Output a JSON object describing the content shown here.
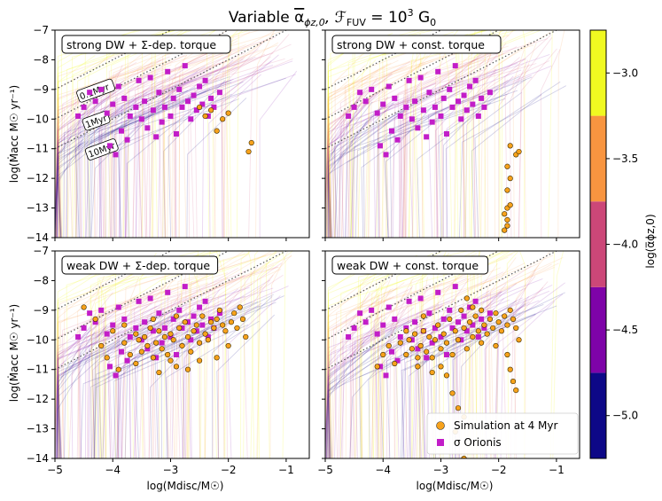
{
  "figure": {
    "title": "Variable α̅ϕz,0, ℱFUV = 10³ G₀",
    "title_main": "Variable ",
    "title_alpha": "α",
    "title_alpha_sub": "ϕz,0",
    "title_mid": ", ℱ",
    "title_fuv_sub": "FUV",
    "title_eq": " = 10",
    "title_sup": "3",
    "title_unit": " G",
    "title_unit_sub": "0"
  },
  "axes_text": {
    "ylabel_top": "log(Ṁacc M☉ yr⁻¹)",
    "ylabel_bottom": "log(Ṁacc M☉ yr⁻¹)",
    "xlabel_left": "log(Mdisc/M☉)",
    "xlabel_right": "log(Mdisc/M☉)"
  },
  "panels": [
    {
      "id": "tl",
      "label": "strong DW + Σ-dep. torque"
    },
    {
      "id": "tr",
      "label": "strong DW + const. torque"
    },
    {
      "id": "bl",
      "label": "weak DW + Σ-dep. torque"
    },
    {
      "id": "br",
      "label": "weak DW + const. torque"
    }
  ],
  "isochrones": {
    "labels": [
      "0.1Myr",
      "1Myr",
      "10Myr"
    ],
    "offsets": [
      -1,
      0,
      1
    ],
    "style": "dotted",
    "color": "#555555"
  },
  "legend": {
    "position": "lower-right",
    "entries": [
      {
        "label": "Simulation at 4 Myr",
        "marker": "circle",
        "color": "#f7a21b"
      },
      {
        "label": "σ Orionis",
        "marker": "square",
        "color": "#c21dc8"
      }
    ]
  },
  "colorbar": {
    "label": "log(α̅ϕz,0)",
    "ticks": [
      "−3.0",
      "−3.5",
      "−4.0",
      "−4.5",
      "−5.0"
    ],
    "tick_values": [
      -3.0,
      -3.5,
      -4.0,
      -4.5,
      -5.0
    ],
    "range": [
      -5.25,
      -2.75
    ],
    "bands": [
      {
        "from": -5.25,
        "to": -4.75,
        "color": "#0d0887"
      },
      {
        "from": -4.75,
        "to": -4.25,
        "color": "#7e03a8"
      },
      {
        "from": -4.25,
        "to": -3.75,
        "color": "#cc4778"
      },
      {
        "from": -3.75,
        "to": -3.25,
        "color": "#f89540"
      },
      {
        "from": -3.25,
        "to": -2.75,
        "color": "#f0f921"
      }
    ]
  },
  "chart_data": {
    "type": "scatter",
    "xlim": [
      -5,
      -0.6
    ],
    "ylim": [
      -14,
      -7
    ],
    "xticks": [
      -5,
      -4,
      -3,
      -2,
      -1
    ],
    "yticks": [
      -14,
      -13,
      -12,
      -11,
      -10,
      -9,
      -8,
      -7
    ],
    "xtick_labels": [
      "−5",
      "−4",
      "−3",
      "−2",
      "−1"
    ],
    "ytick_labels": [
      "−14",
      "−13",
      "−12",
      "−11",
      "−10",
      "−9",
      "−8",
      "−7"
    ],
    "grid": false,
    "sigma_orionis": [
      [
        -4.6,
        -9.9
      ],
      [
        -4.5,
        -9.6
      ],
      [
        -4.4,
        -9.1
      ],
      [
        -4.3,
        -9.4
      ],
      [
        -4.2,
        -9.0
      ],
      [
        -4.1,
        -9.8
      ],
      [
        -4.0,
        -9.5
      ],
      [
        -3.9,
        -8.9
      ],
      [
        -3.85,
        -10.4
      ],
      [
        -3.8,
        -9.3
      ],
      [
        -3.7,
        -9.9
      ],
      [
        -3.6,
        -9.6
      ],
      [
        -3.55,
        -8.7
      ],
      [
        -3.5,
        -10.0
      ],
      [
        -3.45,
        -9.4
      ],
      [
        -3.4,
        -10.3
      ],
      [
        -3.3,
        -9.7
      ],
      [
        -3.2,
        -9.1
      ],
      [
        -3.15,
        -10.1
      ],
      [
        -3.1,
        -9.6
      ],
      [
        -3.05,
        -8.4
      ],
      [
        -3.0,
        -9.9
      ],
      [
        -2.95,
        -9.3
      ],
      [
        -2.9,
        -10.5
      ],
      [
        -2.85,
        -9.0
      ],
      [
        -2.8,
        -9.6
      ],
      [
        -2.75,
        -8.2
      ],
      [
        -2.7,
        -9.4
      ],
      [
        -2.65,
        -10.0
      ],
      [
        -2.6,
        -9.2
      ],
      [
        -2.55,
        -9.7
      ],
      [
        -2.5,
        -8.9
      ],
      [
        -2.45,
        -9.5
      ],
      [
        -2.4,
        -8.7
      ],
      [
        -2.35,
        -9.9
      ],
      [
        -2.3,
        -9.3
      ],
      [
        -2.25,
        -9.6
      ],
      [
        -3.95,
        -11.2
      ],
      [
        -3.35,
        -8.6
      ],
      [
        -3.75,
        -10.7
      ],
      [
        -2.15,
        -9.1
      ],
      [
        -4.05,
        -10.9
      ],
      [
        -3.25,
        -10.6
      ]
    ],
    "simulations_4myr": [
      {
        "panel": "tl",
        "points": [
          [
            -2.5,
            -9.6
          ],
          [
            -2.4,
            -9.9
          ],
          [
            -2.3,
            -9.7
          ],
          [
            -2.2,
            -10.4
          ],
          [
            -2.1,
            -10.0
          ],
          [
            -1.6,
            -10.8
          ],
          [
            -1.65,
            -11.1
          ],
          [
            -2.0,
            -9.8
          ]
        ]
      },
      {
        "panel": "tr",
        "points": [
          [
            -1.8,
            -10.9
          ],
          [
            -1.7,
            -11.2
          ],
          [
            -1.65,
            -11.1
          ],
          [
            -1.85,
            -11.6
          ],
          [
            -1.8,
            -12.0
          ],
          [
            -1.85,
            -12.4
          ],
          [
            -1.85,
            -13.0
          ],
          [
            -1.9,
            -13.2
          ],
          [
            -1.85,
            -13.4
          ],
          [
            -1.85,
            -13.6
          ],
          [
            -1.9,
            -13.75
          ],
          [
            -1.8,
            -12.9
          ]
        ]
      },
      {
        "panel": "bl",
        "points": [
          [
            -4.5,
            -8.9
          ],
          [
            -4.3,
            -9.3
          ],
          [
            -4.0,
            -9.7
          ],
          [
            -3.9,
            -11.0
          ],
          [
            -3.8,
            -10.1
          ],
          [
            -3.7,
            -10.5
          ],
          [
            -3.6,
            -9.8
          ],
          [
            -3.55,
            -10.0
          ],
          [
            -3.5,
            -10.4
          ],
          [
            -3.45,
            -9.9
          ],
          [
            -3.4,
            -10.2
          ],
          [
            -3.35,
            -9.6
          ],
          [
            -3.3,
            -10.6
          ],
          [
            -3.25,
            -10.1
          ],
          [
            -3.2,
            -9.7
          ],
          [
            -3.15,
            -10.3
          ],
          [
            -3.1,
            -9.9
          ],
          [
            -3.05,
            -10.5
          ],
          [
            -3.0,
            -9.8
          ],
          [
            -2.95,
            -10.0
          ],
          [
            -2.9,
            -10.9
          ],
          [
            -2.85,
            -9.6
          ],
          [
            -2.8,
            -10.2
          ],
          [
            -2.75,
            -9.4
          ],
          [
            -2.7,
            -9.9
          ],
          [
            -2.65,
            -10.4
          ],
          [
            -2.6,
            -9.7
          ],
          [
            -2.55,
            -9.5
          ],
          [
            -2.5,
            -10.1
          ],
          [
            -2.45,
            -9.2
          ],
          [
            -2.4,
            -9.8
          ],
          [
            -2.35,
            -10.0
          ],
          [
            -2.3,
            -9.4
          ],
          [
            -2.25,
            -9.6
          ],
          [
            -2.2,
            -9.3
          ],
          [
            -2.15,
            -9.0
          ],
          [
            -2.1,
            -9.5
          ],
          [
            -2.05,
            -9.7
          ],
          [
            -2.0,
            -10.2
          ],
          [
            -1.95,
            -9.4
          ],
          [
            -1.9,
            -9.1
          ],
          [
            -1.85,
            -9.6
          ],
          [
            -1.8,
            -8.9
          ],
          [
            -1.75,
            -9.3
          ],
          [
            -3.0,
            -10.7
          ],
          [
            -3.2,
            -11.1
          ],
          [
            -3.6,
            -10.8
          ],
          [
            -2.7,
            -11.0
          ],
          [
            -4.1,
            -10.6
          ],
          [
            -2.5,
            -10.7
          ],
          [
            -3.8,
            -9.5
          ],
          [
            -4.2,
            -10.2
          ],
          [
            -2.9,
            -9.2
          ],
          [
            -3.3,
            -9.3
          ],
          [
            -2.2,
            -10.6
          ],
          [
            -1.7,
            -9.9
          ]
        ]
      },
      {
        "panel": "br",
        "points": [
          [
            -4.1,
            -10.9
          ],
          [
            -4.0,
            -10.5
          ],
          [
            -3.9,
            -10.2
          ],
          [
            -3.8,
            -10.8
          ],
          [
            -3.7,
            -10.1
          ],
          [
            -3.6,
            -10.5
          ],
          [
            -3.55,
            -10.0
          ],
          [
            -3.5,
            -10.3
          ],
          [
            -3.45,
            -9.8
          ],
          [
            -3.4,
            -10.6
          ],
          [
            -3.35,
            -10.2
          ],
          [
            -3.3,
            -9.7
          ],
          [
            -3.25,
            -10.4
          ],
          [
            -3.2,
            -9.9
          ],
          [
            -3.15,
            -10.6
          ],
          [
            -3.1,
            -10.0
          ],
          [
            -3.05,
            -9.5
          ],
          [
            -3.0,
            -10.3
          ],
          [
            -2.95,
            -9.8
          ],
          [
            -2.9,
            -10.1
          ],
          [
            -2.85,
            -9.3
          ],
          [
            -2.8,
            -10.5
          ],
          [
            -2.75,
            -9.7
          ],
          [
            -2.7,
            -10.0
          ],
          [
            -2.65,
            -9.0
          ],
          [
            -2.6,
            -9.6
          ],
          [
            -2.55,
            -10.3
          ],
          [
            -2.5,
            -9.4
          ],
          [
            -2.45,
            -9.9
          ],
          [
            -2.4,
            -9.2
          ],
          [
            -2.35,
            -9.7
          ],
          [
            -2.3,
            -10.1
          ],
          [
            -2.25,
            -9.5
          ],
          [
            -2.2,
            -9.8
          ],
          [
            -2.15,
            -9.3
          ],
          [
            -2.1,
            -9.6
          ],
          [
            -2.05,
            -9.1
          ],
          [
            -2.0,
            -9.4
          ],
          [
            -1.95,
            -9.7
          ],
          [
            -1.9,
            -9.2
          ],
          [
            -1.85,
            -9.5
          ],
          [
            -1.8,
            -9.0
          ],
          [
            -1.75,
            -9.3
          ],
          [
            -1.7,
            -9.6
          ],
          [
            -1.65,
            -10.0
          ],
          [
            -2.9,
            -11.2
          ],
          [
            -2.8,
            -11.8
          ],
          [
            -2.6,
            -12.6
          ],
          [
            -2.7,
            -12.3
          ],
          [
            -2.75,
            -13.1
          ],
          [
            -2.6,
            -14.0
          ],
          [
            -1.85,
            -10.5
          ],
          [
            -1.8,
            -11.0
          ],
          [
            -1.75,
            -11.4
          ],
          [
            -1.7,
            -11.7
          ],
          [
            -3.0,
            -10.9
          ],
          [
            -3.4,
            -10.9
          ],
          [
            -3.6,
            -9.7
          ],
          [
            -3.3,
            -9.2
          ],
          [
            -2.45,
            -8.9
          ],
          [
            -2.55,
            -8.6
          ],
          [
            -2.3,
            -9.0
          ],
          [
            -2.05,
            -10.2
          ],
          [
            -3.15,
            -11.1
          ]
        ]
      }
    ]
  }
}
